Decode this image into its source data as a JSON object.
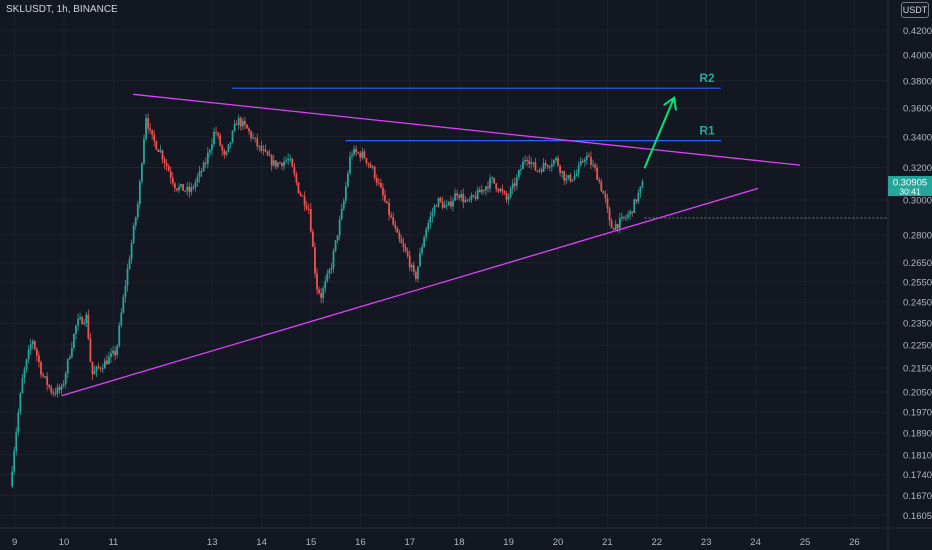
{
  "header": {
    "symbol": "SKLUSDT",
    "interval": "1h",
    "exchange": "BINANCE"
  },
  "currency_badge": "USDT",
  "price_label": {
    "price": "0.30905",
    "countdown": "30:41",
    "color": "#26a69a"
  },
  "annotations": {
    "r1_label": "R1",
    "r2_label": "R2",
    "label_color": "#26a69a",
    "level_line_color": "#2962ff",
    "trendline_color": "#e040fb",
    "arrow_color": "#00e676"
  },
  "chart_data": {
    "type": "candlestick",
    "y_axis": {
      "ticks": [
        "0.42000",
        "0.40000",
        "0.38000",
        "0.36000",
        "0.34000",
        "0.32000",
        "0.30000",
        "0.28000",
        "0.26500",
        "0.25500",
        "0.24500",
        "0.23500",
        "0.22500",
        "0.21500",
        "0.20500",
        "0.19700",
        "0.18900",
        "0.18100",
        "0.17400",
        "0.16700",
        "0.16050"
      ],
      "scale": "log",
      "range": [
        0.155,
        0.43
      ]
    },
    "x_axis": {
      "ticks": [
        "9",
        "10",
        "11",
        "13",
        "14",
        "15",
        "16",
        "17",
        "18",
        "19",
        "20",
        "21",
        "22",
        "23",
        "24",
        "25",
        "26"
      ],
      "tick_days": [
        9,
        10,
        11,
        13,
        14,
        15,
        16,
        17,
        18,
        19,
        20,
        21,
        22,
        23,
        24,
        25,
        26
      ]
    },
    "levels": [
      {
        "name": "R2",
        "price": 0.3745,
        "from_day": 13.4,
        "to_day": 23.3
      },
      {
        "name": "R1",
        "price": 0.3375,
        "from_day": 15.7,
        "to_day": 23.3
      }
    ],
    "trendlines": [
      {
        "from": {
          "day": 11.4,
          "price": 0.37
        },
        "to": {
          "day": 24.9,
          "price": 0.3215
        }
      },
      {
        "from": {
          "day": 9.95,
          "price": 0.2035
        },
        "to": {
          "day": 24.05,
          "price": 0.307
        }
      }
    ],
    "arrow": {
      "from": {
        "day": 21.75,
        "price": 0.3195
      },
      "to": {
        "day": 22.35,
        "price": 0.3675
      }
    },
    "candles": {
      "start_day": 8.95,
      "step_day": 0.0417,
      "up_color": "#26a69a",
      "down_color": "#ef5350",
      "anchors": [
        [
          8.95,
          0.17
        ],
        [
          9.2,
          0.21
        ],
        [
          9.4,
          0.228
        ],
        [
          9.6,
          0.212
        ],
        [
          9.8,
          0.205
        ],
        [
          10.0,
          0.206
        ],
        [
          10.3,
          0.235
        ],
        [
          10.5,
          0.238
        ],
        [
          10.6,
          0.212
        ],
        [
          10.8,
          0.216
        ],
        [
          11.1,
          0.222
        ],
        [
          11.35,
          0.265
        ],
        [
          11.55,
          0.3
        ],
        [
          11.7,
          0.355
        ],
        [
          11.8,
          0.34
        ],
        [
          12.0,
          0.33
        ],
        [
          12.3,
          0.308
        ],
        [
          12.6,
          0.305
        ],
        [
          12.9,
          0.322
        ],
        [
          13.1,
          0.345
        ],
        [
          13.3,
          0.325
        ],
        [
          13.55,
          0.352
        ],
        [
          13.75,
          0.345
        ],
        [
          14.0,
          0.332
        ],
        [
          14.3,
          0.322
        ],
        [
          14.6,
          0.325
        ],
        [
          14.8,
          0.305
        ],
        [
          15.0,
          0.295
        ],
        [
          15.15,
          0.253
        ],
        [
          15.25,
          0.248
        ],
        [
          15.45,
          0.263
        ],
        [
          15.7,
          0.298
        ],
        [
          15.85,
          0.33
        ],
        [
          16.1,
          0.328
        ],
        [
          16.3,
          0.318
        ],
        [
          16.5,
          0.302
        ],
        [
          16.8,
          0.278
        ],
        [
          17.0,
          0.268
        ],
        [
          17.15,
          0.256
        ],
        [
          17.35,
          0.282
        ],
        [
          17.6,
          0.3
        ],
        [
          17.8,
          0.295
        ],
        [
          18.0,
          0.305
        ],
        [
          18.2,
          0.298
        ],
        [
          18.4,
          0.303
        ],
        [
          18.7,
          0.312
        ],
        [
          18.9,
          0.305
        ],
        [
          19.0,
          0.3
        ],
        [
          19.2,
          0.312
        ],
        [
          19.4,
          0.328
        ],
        [
          19.6,
          0.318
        ],
        [
          19.8,
          0.322
        ],
        [
          20.0,
          0.325
        ],
        [
          20.2,
          0.312
        ],
        [
          20.4,
          0.315
        ],
        [
          20.6,
          0.328
        ],
        [
          20.8,
          0.318
        ],
        [
          21.0,
          0.3
        ],
        [
          21.1,
          0.284
        ],
        [
          21.3,
          0.287
        ],
        [
          21.5,
          0.292
        ],
        [
          21.75,
          0.309
        ]
      ]
    }
  }
}
